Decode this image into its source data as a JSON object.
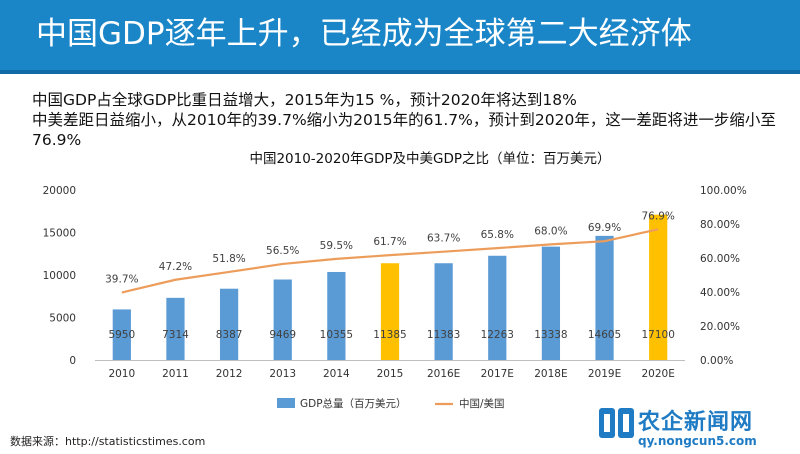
{
  "page": {
    "title": "中国GDP逐年上升，已经成为全球第二大经济体",
    "lines": [
      "中国GDP占全球GDP比重日益增大，2015年为15 %，预计2020年将达到18%",
      "中美差距日益缩小，从2010年的39.7%缩小为2015年的61.7%，预计到2020年，这一差距将进一步缩小至",
      "76.9%"
    ],
    "source": "数据来源：http://statisticstimes.com",
    "watermark": {
      "name": "农企新闻网",
      "url": "qy.nongcun5.com"
    }
  },
  "colors": {
    "banner": "#1a86c8",
    "bar": "#5b9bd5",
    "bar_highlight": "#ffc000",
    "line": "#ed9d5b"
  },
  "chart_data": {
    "type": "bar",
    "title": "中国2010-2020年GDP及中美GDP之比（单位：百万美元）",
    "categories": [
      "2010",
      "2011",
      "2012",
      "2013",
      "2014",
      "2015",
      "2016E",
      "2017E",
      "2018E",
      "2019E",
      "2020E"
    ],
    "highlight": [
      "2015",
      "2020E"
    ],
    "series": [
      {
        "name": "GDP总量（百万美元）",
        "kind": "bar",
        "axis": "left",
        "values": [
          5950,
          7314,
          8387,
          9469,
          10355,
          11385,
          11383,
          12263,
          13338,
          14605,
          17100
        ]
      },
      {
        "name": "中国/美国",
        "kind": "line",
        "axis": "right",
        "values": [
          39.7,
          47.2,
          51.8,
          56.5,
          59.5,
          61.7,
          63.7,
          65.8,
          68.0,
          69.9,
          76.9
        ],
        "labels": [
          "39.7%",
          "47.2%",
          "51.8%",
          "56.5%",
          "59.5%",
          "61.7%",
          "63.7%",
          "65.8%",
          "68.0%",
          "69.9%",
          "76.9%"
        ]
      }
    ],
    "yleft": {
      "min": 0,
      "max": 20000,
      "ticks": [
        "0",
        "5000",
        "10000",
        "15000",
        "20000"
      ]
    },
    "yright": {
      "min": 0,
      "max": 100,
      "ticks": [
        "0.00%",
        "20.00%",
        "40.00%",
        "60.00%",
        "80.00%",
        "100.00%"
      ]
    },
    "grid": false,
    "legend": "bottom"
  }
}
